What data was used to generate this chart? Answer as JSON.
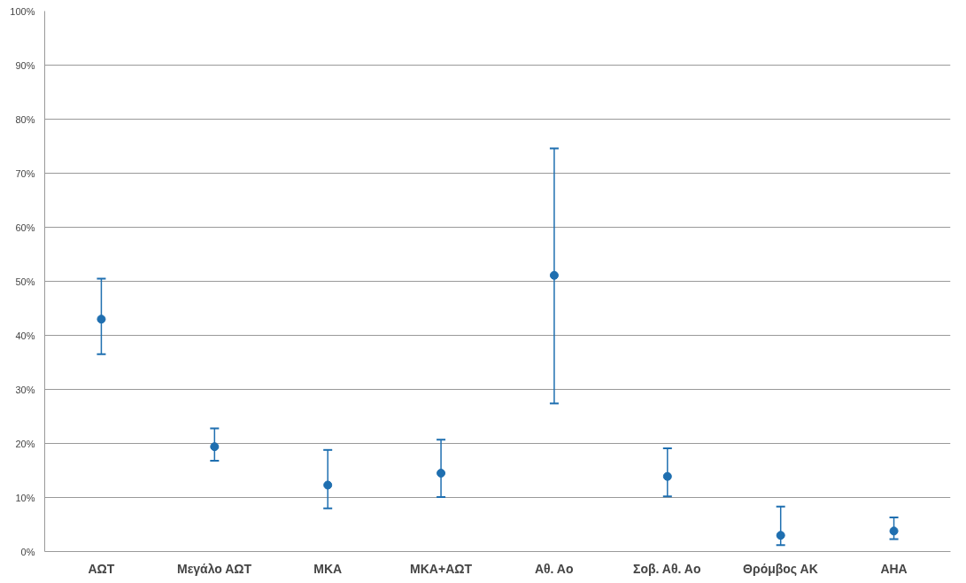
{
  "chart_data": {
    "type": "scatter",
    "categories": [
      "ΑΩΤ",
      "Μεγάλο ΑΩΤ",
      "ΜΚΑ",
      "ΜΚΑ+ΑΩΤ",
      "Αθ. Αο",
      "Σοβ. Αθ. Αο",
      "Θρόμβος ΑΚ",
      "ΑΗΑ"
    ],
    "series": [
      {
        "color": "#1f6fb0",
        "values": [
          43.0,
          19.4,
          12.3,
          14.5,
          51.1,
          13.9,
          3.0,
          3.8
        ],
        "errors": [
          [
            36.5,
            50.5
          ],
          [
            16.8,
            22.8
          ],
          [
            8.0,
            18.8
          ],
          [
            10.1,
            20.7
          ],
          [
            27.4,
            74.6
          ],
          [
            10.2,
            19.1
          ],
          [
            1.2,
            8.3
          ],
          [
            2.3,
            6.3
          ]
        ]
      }
    ],
    "ylim": [
      0,
      100
    ],
    "yticks": [
      {
        "value": 0,
        "label": "0%"
      },
      {
        "value": 10,
        "label": "10%"
      },
      {
        "value": 20,
        "label": "20%"
      },
      {
        "value": 30,
        "label": "30%"
      },
      {
        "value": 40,
        "label": "40%"
      },
      {
        "value": 50,
        "label": "50%"
      },
      {
        "value": 60,
        "label": "60%"
      },
      {
        "value": 70,
        "label": "70%"
      },
      {
        "value": 80,
        "label": "80%"
      },
      {
        "value": 90,
        "label": "90%"
      },
      {
        "value": 100,
        "label": "100%"
      }
    ],
    "grid": "y",
    "marker": "circle"
  }
}
